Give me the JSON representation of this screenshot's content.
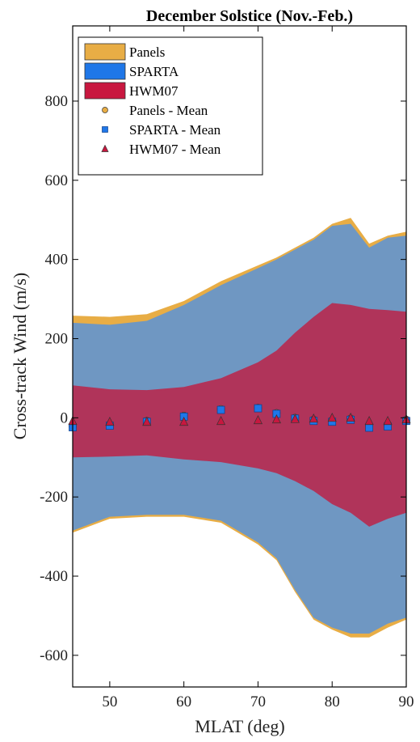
{
  "chart_data": {
    "type": "area",
    "title": "December Solstice (Nov.-Feb.)",
    "xlabel": "MLAT (deg)",
    "ylabel": "Cross-track Wind (m/s)",
    "xlim": [
      45,
      90
    ],
    "ylim": [
      -680,
      990
    ],
    "xticks": [
      50,
      60,
      70,
      80,
      90
    ],
    "yticks": [
      -600,
      -400,
      -200,
      0,
      200,
      400,
      600,
      800
    ],
    "grid": false,
    "legend_placement": "top-left",
    "colors": {
      "panels": "#e8ad45",
      "sparta": "#1f77e8",
      "hwm07": "#c8173f",
      "band_overlap_sparta": "#6f97c2",
      "band_overlap_hwm07": "#b0345a"
    },
    "x": [
      45,
      50,
      55,
      60,
      65,
      70,
      72.5,
      75,
      77.5,
      80,
      82.5,
      85,
      87.5,
      90
    ],
    "series": [
      {
        "name": "Panels",
        "kind": "band",
        "upper": [
          258,
          255,
          262,
          295,
          345,
          385,
          405,
          430,
          455,
          490,
          505,
          440,
          460,
          470
        ],
        "lower": [
          -290,
          -255,
          -250,
          -250,
          -265,
          -320,
          -360,
          -440,
          -510,
          -535,
          -555,
          -555,
          -530,
          -510
        ]
      },
      {
        "name": "SPARTA",
        "kind": "band",
        "upper": [
          240,
          235,
          245,
          285,
          335,
          378,
          400,
          425,
          450,
          485,
          490,
          430,
          455,
          460
        ],
        "lower": [
          -285,
          -250,
          -245,
          -245,
          -260,
          -315,
          -355,
          -435,
          -505,
          -530,
          -545,
          -545,
          -520,
          -505
        ]
      },
      {
        "name": "HWM07",
        "kind": "band",
        "upper": [
          82,
          72,
          70,
          78,
          100,
          140,
          170,
          215,
          255,
          290,
          285,
          275,
          272,
          268
        ],
        "lower": [
          -100,
          -98,
          -95,
          -105,
          -112,
          -128,
          -140,
          -160,
          -185,
          -218,
          -240,
          -275,
          -255,
          -240
        ]
      },
      {
        "name": "Panels - Mean",
        "kind": "markers",
        "marker": "circle",
        "values": [
          -22,
          -18,
          -8,
          5,
          22,
          25,
          12,
          0,
          -5,
          -8,
          -2,
          -20,
          -18,
          -5
        ]
      },
      {
        "name": "SPARTA - Mean",
        "kind": "markers",
        "marker": "square",
        "values": [
          -24,
          -20,
          -10,
          3,
          20,
          24,
          10,
          -2,
          -8,
          -10,
          -5,
          -25,
          -22,
          -8
        ]
      },
      {
        "name": "HWM07 - Mean",
        "kind": "markers",
        "marker": "triangle",
        "values": [
          -8,
          -10,
          -10,
          -10,
          -8,
          -6,
          -4,
          -3,
          -2,
          0,
          0,
          -8,
          -8,
          -4
        ]
      }
    ]
  }
}
